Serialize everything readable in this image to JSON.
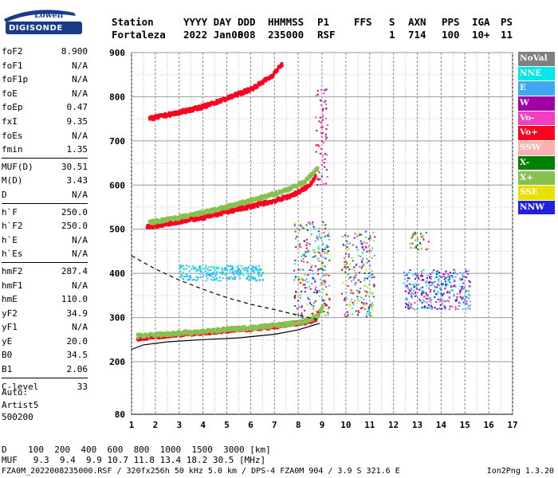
{
  "logo": {
    "brand": "Lowell",
    "product": "DIGISONDE"
  },
  "header": {
    "labels": [
      "Station",
      "YYYY DAY",
      "DDD",
      "HHMMSS",
      "P1",
      "FFS",
      "S",
      "AXN",
      "PPS",
      "IGA",
      "PS"
    ],
    "values": [
      "Fortaleza",
      "2022 Jan08",
      "008",
      "235000",
      "RSF",
      "",
      "1",
      "714",
      "100",
      "10+",
      "11"
    ]
  },
  "params": {
    "group1": [
      {
        "name": "foF2",
        "value": "8.900"
      },
      {
        "name": "foF1",
        "value": "N/A"
      },
      {
        "name": "foF1p",
        "value": "N/A"
      },
      {
        "name": "foE",
        "value": "N/A"
      },
      {
        "name": "foEp",
        "value": "0.47"
      },
      {
        "name": "fxI",
        "value": "9.35"
      },
      {
        "name": "foEs",
        "value": "N/A"
      },
      {
        "name": "fmin",
        "value": "1.35"
      }
    ],
    "group2": [
      {
        "name": "MUF(D)",
        "value": "30.51"
      },
      {
        "name": "M(D)",
        "value": "3.43"
      },
      {
        "name": "D",
        "value": "N/A"
      }
    ],
    "group3": [
      {
        "name": "h`F",
        "value": "250.0"
      },
      {
        "name": "h`F2",
        "value": "250.0"
      },
      {
        "name": "h`E",
        "value": "N/A"
      },
      {
        "name": "h`Es",
        "value": "N/A"
      }
    ],
    "group4": [
      {
        "name": "hmF2",
        "value": "287.4"
      },
      {
        "name": "hmF1",
        "value": "N/A"
      },
      {
        "name": "hmE",
        "value": "110.0"
      },
      {
        "name": "yF2",
        "value": "34.9"
      },
      {
        "name": "yF1",
        "value": "N/A"
      },
      {
        "name": "yE",
        "value": "20.0"
      },
      {
        "name": "B0",
        "value": "34.5"
      },
      {
        "name": "B1",
        "value": "2.06"
      }
    ],
    "group5": [
      {
        "name": "C-level",
        "value": "33"
      }
    ]
  },
  "auto": {
    "line1": "Auto:",
    "line2": "Artist5",
    "line3": "500200"
  },
  "legend": [
    {
      "label": "NoVal",
      "color": "#808080"
    },
    {
      "label": "NNE",
      "color": "#00e8e8"
    },
    {
      "label": "E",
      "color": "#40a8f0"
    },
    {
      "label": "W",
      "color": "#a000a8"
    },
    {
      "label": "Vo-",
      "color": "#f040c0"
    },
    {
      "label": "Vo+",
      "color": "#ff0020"
    },
    {
      "label": "SSW",
      "color": "#f8b0b0"
    },
    {
      "label": "X-",
      "color": "#008000"
    },
    {
      "label": "X+",
      "color": "#88c050"
    },
    {
      "label": "SSE",
      "color": "#e8e000"
    },
    {
      "label": "NNW",
      "color": "#2020e0"
    }
  ],
  "footer": {
    "line1": "D    100  200  400  600  800  1000  1500  3000 [km]",
    "line2": "MUF   9.3  9.4  9.9 10.7 11.8 13.4 18.2 30.5 [MHz]",
    "line3": "FZA0M_2022008235000.RSF / 320fx256h 50 kHz 5.0 km / DPS-4 FZA0M 904 / 3.9 S 321.6 E",
    "line4": "Ion2Png 1.3.20"
  },
  "chart_data": {
    "type": "scatter",
    "xlim": [
      1,
      17
    ],
    "ylim": [
      80,
      900
    ],
    "x_ticks": [
      1,
      2,
      3,
      4,
      5,
      6,
      7,
      8,
      9,
      10,
      11,
      12,
      13,
      14,
      15,
      16,
      17
    ],
    "y_ticks": [
      80,
      200,
      300,
      400,
      500,
      600,
      700,
      800,
      900
    ],
    "grid": true,
    "legend_position": "right",
    "traces": [
      {
        "name": "F2 O-trace 1st hop",
        "color": "#ff0020",
        "x": [
          1.2,
          1.8,
          2.5,
          3.2,
          4.0,
          5.0,
          6.0,
          7.0,
          7.6,
          8.0,
          8.4,
          8.7,
          8.9
        ],
        "y": [
          252,
          256,
          260,
          263,
          266,
          271,
          275,
          280,
          284,
          287,
          291,
          298,
          320
        ]
      },
      {
        "name": "F2 O-trace 2nd hop",
        "color": "#ff0020",
        "x": [
          1.6,
          2.2,
          3.0,
          4.0,
          5.0,
          6.0,
          7.0,
          7.6,
          8.0,
          8.4,
          8.7
        ],
        "y": [
          505,
          510,
          518,
          527,
          540,
          552,
          565,
          575,
          585,
          598,
          622
        ]
      },
      {
        "name": "F2 3rd hop",
        "color": "#ff0020",
        "x": [
          1.7,
          2.3,
          3.0,
          4.0,
          5.0,
          6.0,
          6.8,
          7.3
        ],
        "y": [
          750,
          757,
          765,
          778,
          797,
          818,
          845,
          875
        ]
      },
      {
        "name": "X trace 1st hop",
        "color": "#88c050",
        "x": [
          1.2,
          2.0,
          3.0,
          4.0,
          5.0,
          6.0,
          7.0,
          7.8,
          8.4,
          8.8,
          9.0
        ],
        "y": [
          258,
          261,
          265,
          268,
          273,
          277,
          282,
          287,
          293,
          305,
          330
        ]
      },
      {
        "name": "X trace 2nd hop",
        "color": "#88c050",
        "x": [
          1.7,
          2.5,
          3.5,
          4.5,
          5.5,
          6.5,
          7.5,
          8.2,
          8.8
        ],
        "y": [
          515,
          522,
          532,
          544,
          558,
          572,
          590,
          606,
          640
        ]
      }
    ],
    "profile_solid": {
      "x": [
        1.0,
        1.5,
        2.5,
        4.0,
        5.5,
        7.0,
        8.0,
        8.6,
        8.9
      ],
      "y": [
        228,
        238,
        245,
        250,
        254,
        262,
        272,
        282,
        287
      ]
    },
    "profile_dashed": {
      "x": [
        1.0,
        2.0,
        3.0,
        4.0,
        5.0,
        6.0,
        7.0,
        8.0,
        8.8
      ],
      "y": [
        440,
        410,
        385,
        364,
        345,
        330,
        318,
        305,
        296
      ]
    }
  }
}
